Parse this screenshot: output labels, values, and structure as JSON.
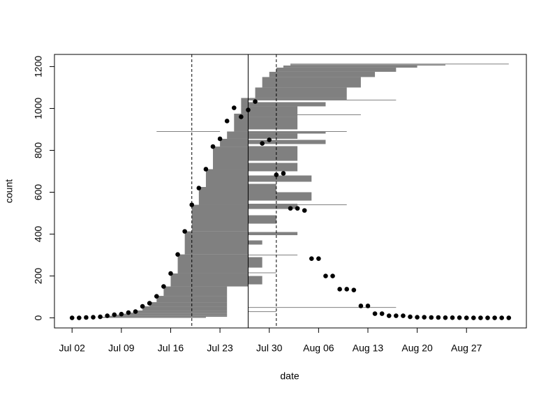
{
  "chart_data": {
    "type": "scatter",
    "xlabel": "date",
    "ylabel": "count",
    "xlim": [
      -2.5,
      64.5
    ],
    "ylim": [
      -48,
      1258
    ],
    "xticks": [
      {
        "value": 0,
        "label": "Jul 02"
      },
      {
        "value": 7,
        "label": "Jul 09"
      },
      {
        "value": 14,
        "label": "Jul 16"
      },
      {
        "value": 21,
        "label": "Jul 23"
      },
      {
        "value": 28,
        "label": "Jul 30"
      },
      {
        "value": 35,
        "label": "Aug 06"
      },
      {
        "value": 42,
        "label": "Aug 13"
      },
      {
        "value": 49,
        "label": "Aug 20"
      },
      {
        "value": 56,
        "label": "Aug 27"
      }
    ],
    "yticks": [
      0,
      200,
      400,
      600,
      800,
      1000,
      1200
    ],
    "color": "#000000",
    "band_color": "#808080",
    "x": [
      0,
      1,
      2,
      3,
      4,
      5,
      6,
      7,
      8,
      9,
      10,
      11,
      12,
      13,
      14,
      15,
      16,
      17,
      18,
      19,
      20,
      21,
      22,
      23,
      24,
      25,
      26,
      27,
      28,
      29,
      30,
      31,
      32,
      33,
      34,
      35,
      36,
      37,
      38,
      39,
      40,
      41,
      42,
      43,
      44,
      45,
      46,
      47,
      48,
      49,
      50,
      51,
      52,
      53,
      54,
      55,
      56,
      57,
      58,
      59,
      60,
      61,
      62
    ],
    "values": [
      0,
      0,
      2,
      3,
      5,
      10,
      15,
      18,
      25,
      30,
      55,
      70,
      103,
      150,
      212,
      303,
      413,
      540,
      620,
      710,
      818,
      855,
      940,
      1003,
      960,
      993,
      1033,
      833,
      850,
      683,
      690,
      523,
      523,
      513,
      283,
      283,
      200,
      200,
      137,
      137,
      133,
      57,
      57,
      20,
      20,
      10,
      10,
      10,
      5,
      3,
      3,
      2,
      2,
      1,
      1,
      1,
      0,
      0,
      0,
      0,
      0,
      0,
      0
    ],
    "bands": [
      [
        4,
        19,
        0,
        5
      ],
      [
        5,
        22,
        5,
        10
      ],
      [
        6,
        22,
        10,
        15
      ],
      [
        7,
        22,
        15,
        20
      ],
      [
        8,
        22,
        20,
        25
      ],
      [
        9,
        22,
        25,
        35
      ],
      [
        10,
        22,
        35,
        55
      ],
      [
        11,
        22,
        55,
        75
      ],
      [
        12,
        22,
        75,
        105
      ],
      [
        13,
        22,
        105,
        150
      ],
      [
        14,
        25,
        150,
        212
      ],
      [
        15,
        25,
        212,
        303
      ],
      [
        16,
        25,
        303,
        413
      ],
      [
        17,
        25,
        413,
        540
      ],
      [
        18,
        25,
        540,
        625
      ],
      [
        19,
        25,
        625,
        710
      ],
      [
        20,
        25,
        710,
        818
      ],
      [
        21,
        25,
        818,
        855
      ],
      [
        22,
        25,
        855,
        890
      ],
      [
        23,
        25,
        890,
        975
      ],
      [
        24,
        25,
        975,
        1003
      ],
      [
        24,
        25,
        1003,
        1050
      ],
      [
        25,
        27,
        160,
        200
      ],
      [
        25,
        27,
        240,
        290
      ],
      [
        25,
        27,
        350,
        370
      ],
      [
        25,
        32,
        395,
        410
      ],
      [
        25,
        29,
        450,
        490
      ],
      [
        25,
        32,
        520,
        545
      ],
      [
        25,
        34,
        560,
        600
      ],
      [
        25,
        29,
        600,
        640
      ],
      [
        25,
        34,
        650,
        680
      ],
      [
        25,
        32,
        700,
        740
      ],
      [
        25,
        32,
        750,
        820
      ],
      [
        25,
        36,
        830,
        850
      ],
      [
        25,
        32,
        855,
        880
      ],
      [
        25,
        36,
        880,
        890
      ],
      [
        25,
        32,
        900,
        960
      ],
      [
        25,
        32,
        960,
        1010
      ],
      [
        25,
        36,
        1010,
        1030
      ],
      [
        25,
        39,
        1040,
        1050
      ],
      [
        26,
        39,
        1050,
        1100
      ],
      [
        27,
        41,
        1100,
        1150
      ],
      [
        28,
        43,
        1150,
        1175
      ],
      [
        29,
        46,
        1175,
        1195
      ],
      [
        30,
        49,
        1195,
        1205
      ],
      [
        31,
        53,
        1205,
        1210
      ]
    ],
    "lines": [
      [
        12,
        21,
        890
      ],
      [
        25,
        46,
        50
      ],
      [
        31,
        62,
        1212
      ],
      [
        25,
        39,
        540
      ],
      [
        25,
        39,
        890
      ],
      [
        25,
        41,
        970
      ],
      [
        25,
        46,
        1040
      ],
      [
        25,
        32,
        300
      ],
      [
        25,
        29,
        215
      ],
      [
        25,
        29,
        30
      ]
    ],
    "vlines": [
      {
        "x": 17,
        "style": "dashed"
      },
      {
        "x": 25,
        "style": "solid"
      },
      {
        "x": 29,
        "style": "dashed"
      }
    ]
  }
}
